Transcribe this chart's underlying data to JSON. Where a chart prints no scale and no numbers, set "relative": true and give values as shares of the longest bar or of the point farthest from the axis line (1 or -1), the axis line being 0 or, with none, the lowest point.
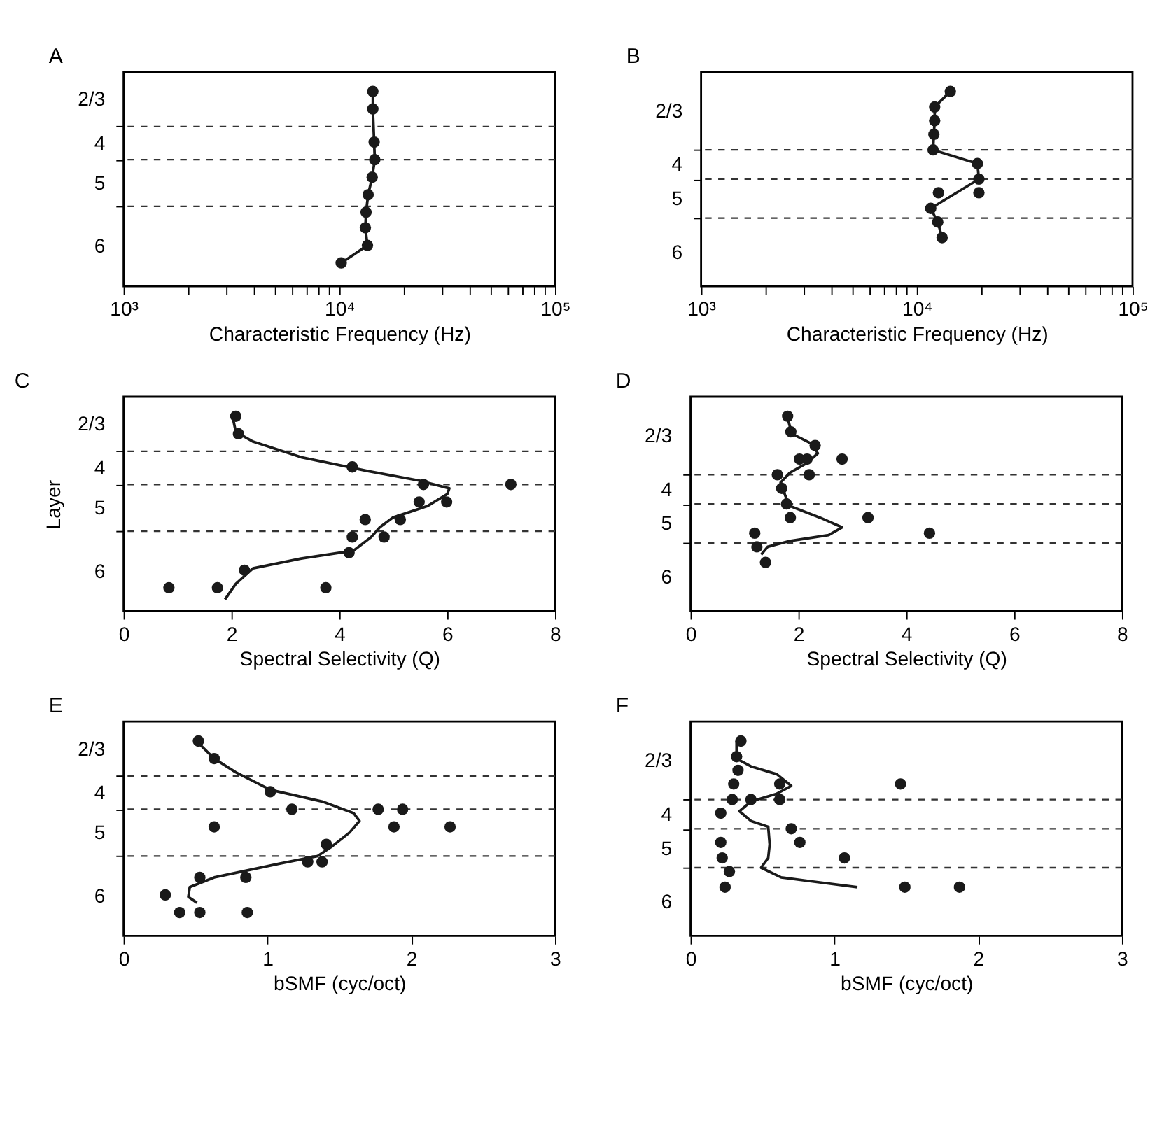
{
  "chart_data": [
    {
      "type": "line",
      "title": "A",
      "xlabel": "Characteristic Frequency (Hz)",
      "log": "x",
      "marker": "circle",
      "grid": false,
      "relative": true,
      "xlim": [
        1000,
        100000
      ],
      "xticks": [
        {
          "value": 1000,
          "label": "10³"
        },
        {
          "value": 2000,
          "label": null
        },
        {
          "value": 3000,
          "label": null
        },
        {
          "value": 4000,
          "label": null
        },
        {
          "value": 5000,
          "label": null
        },
        {
          "value": 6000,
          "label": null
        },
        {
          "value": 7000,
          "label": null
        },
        {
          "value": 8000,
          "label": null
        },
        {
          "value": 9000,
          "label": null
        },
        {
          "value": 10000,
          "label": "10⁴"
        },
        {
          "value": 20000,
          "label": null
        },
        {
          "value": 30000,
          "label": null
        },
        {
          "value": 40000,
          "label": null
        },
        {
          "value": 50000,
          "label": null
        },
        {
          "value": 60000,
          "label": null
        },
        {
          "value": 70000,
          "label": null
        },
        {
          "value": 80000,
          "label": null
        },
        {
          "value": 90000,
          "label": null
        },
        {
          "value": 100000,
          "label": "10⁵"
        }
      ],
      "annotations": [
        "2/3",
        "4",
        "5",
        "6"
      ],
      "ref_lines": [
        {
          "axis": "y",
          "value": 0.82,
          "line_style": "dashed",
          "color": "#333333"
        },
        {
          "axis": "y",
          "value": 0.65,
          "line_style": "dashed",
          "color": "#333333"
        },
        {
          "axis": "y",
          "value": 0.41,
          "line_style": "dashed",
          "color": "#333333"
        }
      ],
      "series": [
        {
          "color": "#1a1a1a",
          "x": [
            14300,
            14300,
            14500,
            14600,
            14200,
            13600,
            13300,
            13200,
            13500,
            10200
          ],
          "values": [
            1,
            0.91,
            0.74,
            0.65,
            0.56,
            0.47,
            0.38,
            0.3,
            0.21,
            0.12
          ]
        }
      ]
    },
    {
      "type": "scatter",
      "title": "B",
      "xlabel": "Characteristic Frequency (Hz)",
      "log": "x",
      "marker": "circle",
      "grid": false,
      "relative": true,
      "xlim": [
        1000,
        100000
      ],
      "xticks": [
        {
          "value": 1000,
          "label": "10³"
        },
        {
          "value": 2000,
          "label": null
        },
        {
          "value": 3000,
          "label": null
        },
        {
          "value": 4000,
          "label": null
        },
        {
          "value": 5000,
          "label": null
        },
        {
          "value": 6000,
          "label": null
        },
        {
          "value": 7000,
          "label": null
        },
        {
          "value": 8000,
          "label": null
        },
        {
          "value": 9000,
          "label": null
        },
        {
          "value": 10000,
          "label": "10⁴"
        },
        {
          "value": 20000,
          "label": null
        },
        {
          "value": 30000,
          "label": null
        },
        {
          "value": 40000,
          "label": null
        },
        {
          "value": 50000,
          "label": null
        },
        {
          "value": 60000,
          "label": null
        },
        {
          "value": 70000,
          "label": null
        },
        {
          "value": 80000,
          "label": null
        },
        {
          "value": 90000,
          "label": null
        },
        {
          "value": 100000,
          "label": "10⁵"
        }
      ],
      "annotations": [
        "2/3",
        "4",
        "5",
        "6"
      ],
      "ref_lines": [
        {
          "axis": "y",
          "value": 0.7,
          "line_style": "dashed",
          "color": "#333333"
        },
        {
          "axis": "y",
          "value": 0.55,
          "line_style": "dashed",
          "color": "#333333"
        },
        {
          "axis": "y",
          "value": 0.35,
          "line_style": "dashed",
          "color": "#333333"
        }
      ],
      "series": [
        {
          "color": "#1a1a1a",
          "x": [
            14300,
            12100,
            12100,
            12000,
            11900,
            19100,
            19400,
            12600,
            19400,
            11600,
            12500,
            13100
          ],
          "values": [
            1,
            0.92,
            0.85,
            0.78,
            0.7,
            0.63,
            0.55,
            0.48,
            0.48,
            0.4,
            0.33,
            0.25
          ]
        },
        {
          "type": "line",
          "color": "#1a1a1a",
          "marker": "none",
          "x": [
            14300,
            12100,
            12100,
            12000,
            11900,
            19100,
            19400,
            11600,
            12500,
            13100
          ],
          "values": [
            1,
            0.92,
            0.85,
            0.78,
            0.7,
            0.63,
            0.55,
            0.4,
            0.33,
            0.25
          ]
        }
      ]
    },
    {
      "type": "scatter",
      "title": "C",
      "xlabel": "Spectral Selectivity (Q)",
      "ylabel": "Layer",
      "marker": "circle",
      "grid": false,
      "relative": true,
      "xlim": [
        0,
        8
      ],
      "xticks": [
        0,
        2,
        4,
        6,
        8
      ],
      "annotations": [
        "2/3",
        "4",
        "5",
        "6"
      ],
      "ref_lines": [
        {
          "axis": "y",
          "value": 0.82,
          "line_style": "dashed",
          "color": "#333333"
        },
        {
          "axis": "y",
          "value": 0.65,
          "line_style": "dashed",
          "color": "#333333"
        },
        {
          "axis": "y",
          "value": 0.41,
          "line_style": "dashed",
          "color": "#333333"
        }
      ],
      "series": [
        {
          "color": "#1a1a1a",
          "x": [
            2.08,
            2.13,
            4.24,
            5.56,
            7.18,
            5.48,
            5.99,
            4.48,
            5.13,
            4.24,
            4.83,
            4.18,
            2.24,
            0.84,
            1.74,
            3.75
          ],
          "values": [
            1,
            0.91,
            0.74,
            0.65,
            0.65,
            0.56,
            0.56,
            0.47,
            0.47,
            0.38,
            0.38,
            0.3,
            0.21,
            0.12,
            0.12,
            0.12
          ]
        },
        {
          "type": "line",
          "color": "#1a1a1a",
          "marker": "none",
          "x": [
            2.02,
            2.08,
            2.4,
            3.29,
            4.51,
            5.48,
            6.04,
            6.0,
            5.64,
            4.99,
            4.75,
            4.59,
            4.26,
            3.29,
            2.4,
            2.08,
            1.88
          ],
          "values": [
            1,
            0.92,
            0.87,
            0.79,
            0.72,
            0.67,
            0.63,
            0.6,
            0.54,
            0.48,
            0.43,
            0.38,
            0.31,
            0.27,
            0.22,
            0.14,
            0.06
          ]
        }
      ]
    },
    {
      "type": "scatter",
      "title": "D",
      "xlabel": "Spectral Selectivity (Q)",
      "marker": "circle",
      "grid": false,
      "relative": true,
      "xlim": [
        0,
        8
      ],
      "xticks": [
        0,
        2,
        4,
        6,
        8
      ],
      "annotations": [
        "2/3",
        "4",
        "5",
        "6"
      ],
      "ref_lines": [
        {
          "axis": "y",
          "value": 0.7,
          "line_style": "dashed",
          "color": "#333333"
        },
        {
          "axis": "y",
          "value": 0.55,
          "line_style": "dashed",
          "color": "#333333"
        },
        {
          "axis": "y",
          "value": 0.35,
          "line_style": "dashed",
          "color": "#333333"
        }
      ],
      "series": [
        {
          "color": "#1a1a1a",
          "x": [
            1.8,
            1.86,
            2.31,
            2.02,
            2.16,
            2.81,
            1.61,
            2.2,
            1.69,
            1.78,
            1.85,
            3.29,
            1.19,
            4.43,
            1.23,
            1.39
          ],
          "values": [
            1,
            0.92,
            0.85,
            0.78,
            0.78,
            0.78,
            0.7,
            0.7,
            0.63,
            0.55,
            0.48,
            0.48,
            0.4,
            0.4,
            0.33,
            0.25
          ]
        },
        {
          "type": "line",
          "color": "#1a1a1a",
          "marker": "none",
          "x": [
            1.8,
            1.88,
            2.24,
            2.36,
            2.16,
            1.84,
            1.67,
            1.76,
            1.84,
            2.4,
            2.81,
            2.56,
            1.84,
            1.43,
            1.31
          ],
          "values": [
            0.99,
            0.91,
            0.86,
            0.81,
            0.76,
            0.71,
            0.66,
            0.59,
            0.54,
            0.48,
            0.43,
            0.39,
            0.36,
            0.33,
            0.29
          ]
        }
      ]
    },
    {
      "type": "scatter",
      "title": "E",
      "xlabel": "bSMF (cyc/oct)",
      "marker": "circle",
      "grid": false,
      "relative": true,
      "xlim": [
        0,
        3
      ],
      "xticks": [
        0,
        1,
        2,
        3
      ],
      "annotations": [
        "2/3",
        "4",
        "5",
        "6"
      ],
      "ref_lines": [
        {
          "axis": "y",
          "value": 0.82,
          "line_style": "dashed",
          "color": "#333333"
        },
        {
          "axis": "y",
          "value": 0.65,
          "line_style": "dashed",
          "color": "#333333"
        },
        {
          "axis": "y",
          "value": 0.41,
          "line_style": "dashed",
          "color": "#333333"
        }
      ],
      "series": [
        {
          "color": "#1a1a1a",
          "x": [
            0.52,
            0.63,
            1.02,
            1.17,
            1.77,
            1.94,
            0.63,
            1.88,
            2.27,
            1.41,
            1.28,
            1.38,
            0.53,
            0.85,
            0.29,
            0.39,
            0.53,
            0.86
          ],
          "values": [
            1,
            0.91,
            0.74,
            0.65,
            0.65,
            0.65,
            0.56,
            0.56,
            0.56,
            0.47,
            0.38,
            0.38,
            0.3,
            0.3,
            0.21,
            0.12,
            0.12,
            0.12
          ]
        },
        {
          "type": "line",
          "color": "#1a1a1a",
          "marker": "none",
          "x": [
            0.52,
            0.63,
            0.78,
            1.02,
            1.38,
            1.6,
            1.64,
            1.57,
            1.45,
            1.35,
            1.08,
            0.63,
            0.46,
            0.45,
            0.51
          ],
          "values": [
            0.99,
            0.91,
            0.84,
            0.75,
            0.69,
            0.63,
            0.59,
            0.53,
            0.46,
            0.41,
            0.37,
            0.3,
            0.25,
            0.2,
            0.17
          ]
        }
      ]
    },
    {
      "type": "scatter",
      "title": "F",
      "xlabel": "bSMF (cyc/oct)",
      "marker": "circle",
      "grid": false,
      "relative": true,
      "xlim": [
        0,
        3
      ],
      "xticks": [
        0,
        1,
        2,
        3
      ],
      "annotations": [
        "2/3",
        "4",
        "5",
        "6"
      ],
      "ref_lines": [
        {
          "axis": "y",
          "value": 0.7,
          "line_style": "dashed",
          "color": "#333333"
        },
        {
          "axis": "y",
          "value": 0.55,
          "line_style": "dashed",
          "color": "#333333"
        },
        {
          "axis": "y",
          "value": 0.35,
          "line_style": "dashed",
          "color": "#333333"
        }
      ],
      "series": [
        {
          "color": "#1a1a1a",
          "x": [
            0.35,
            0.32,
            0.33,
            0.3,
            0.62,
            1.46,
            0.29,
            0.42,
            0.62,
            0.21,
            0.7,
            0.21,
            0.76,
            0.22,
            1.07,
            0.27,
            0.24,
            1.49,
            1.87
          ],
          "values": [
            1,
            0.92,
            0.85,
            0.78,
            0.78,
            0.78,
            0.7,
            0.7,
            0.7,
            0.63,
            0.55,
            0.48,
            0.48,
            0.4,
            0.4,
            0.33,
            0.25,
            0.25,
            0.25
          ]
        },
        {
          "type": "line",
          "color": "#1a1a1a",
          "marker": "none",
          "x": [
            0.32,
            0.32,
            0.42,
            0.6,
            0.7,
            0.6,
            0.42,
            0.34,
            0.42,
            0.54,
            0.55,
            0.54,
            0.49,
            0.63,
            0.84,
            1.16
          ],
          "values": [
            1,
            0.91,
            0.87,
            0.83,
            0.77,
            0.73,
            0.69,
            0.64,
            0.59,
            0.56,
            0.47,
            0.4,
            0.35,
            0.3,
            0.28,
            0.25
          ]
        }
      ]
    }
  ]
}
